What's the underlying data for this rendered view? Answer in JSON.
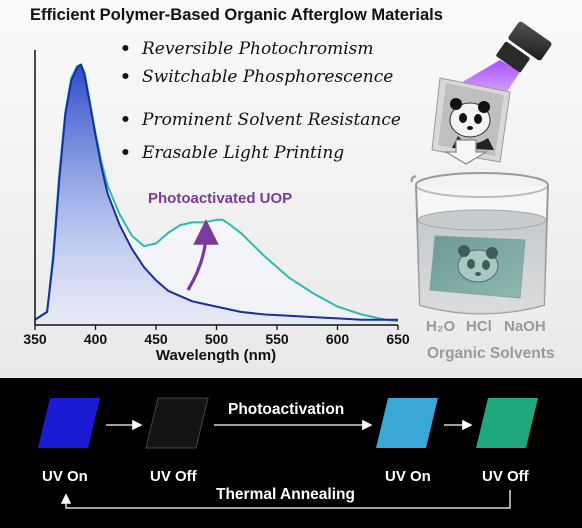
{
  "title": "Efficient Polymer-Based Organic Afterglow Materials",
  "features": [
    "Reversible Photochromism",
    "Switchable Phosphorescence",
    "Prominent Solvent Resistance",
    "Erasable Light Printing"
  ],
  "bullet": "•",
  "chart_data": {
    "type": "line",
    "xlabel": "Wavelength (nm)",
    "ylabel": "",
    "xlim": [
      350,
      650
    ],
    "ylim": [
      0,
      1.0
    ],
    "x_ticks": [
      "350",
      "400",
      "450",
      "500",
      "550",
      "600",
      "650"
    ],
    "annotation": "Photoactivated UOP",
    "series": [
      {
        "name": "",
        "color": "#1a2f9e",
        "x": [
          350,
          360,
          365,
          370,
          375,
          380,
          385,
          388,
          391,
          395,
          400,
          405,
          410,
          420,
          430,
          440,
          450,
          460,
          470,
          480,
          490,
          500,
          520,
          540,
          560,
          580,
          600,
          620,
          640,
          650
        ],
        "y": [
          0.02,
          0.05,
          0.25,
          0.55,
          0.8,
          0.93,
          0.98,
          0.99,
          0.95,
          0.85,
          0.72,
          0.6,
          0.5,
          0.38,
          0.29,
          0.22,
          0.17,
          0.13,
          0.11,
          0.09,
          0.08,
          0.07,
          0.05,
          0.04,
          0.035,
          0.03,
          0.025,
          0.02,
          0.02,
          0.02
        ]
      },
      {
        "name": "",
        "color": "#2bbbb0",
        "x": [
          350,
          360,
          365,
          370,
          375,
          380,
          385,
          388,
          391,
          395,
          400,
          405,
          410,
          420,
          430,
          440,
          450,
          460,
          470,
          480,
          490,
          500,
          505,
          510,
          520,
          540,
          560,
          580,
          600,
          620,
          640,
          650
        ],
        "y": [
          0.02,
          0.05,
          0.27,
          0.57,
          0.81,
          0.94,
          0.985,
          0.99,
          0.96,
          0.86,
          0.73,
          0.62,
          0.53,
          0.42,
          0.34,
          0.3,
          0.31,
          0.35,
          0.38,
          0.39,
          0.39,
          0.4,
          0.4,
          0.385,
          0.35,
          0.26,
          0.18,
          0.12,
          0.07,
          0.04,
          0.02,
          0.015
        ]
      }
    ]
  },
  "solvents": {
    "items": [
      "H₂O",
      "HCl",
      "NaOH"
    ],
    "caption": "Organic Solvents"
  },
  "cycle": {
    "states": [
      {
        "label": "UV On",
        "color": "#1b1bd6"
      },
      {
        "label": "UV Off",
        "color": "#141414"
      },
      {
        "label": "UV On",
        "color": "#3aa8d6"
      },
      {
        "label": "UV Off",
        "color": "#1fa77d"
      }
    ],
    "process_forward": "Photoactivation",
    "process_back": "Thermal Annealing"
  }
}
